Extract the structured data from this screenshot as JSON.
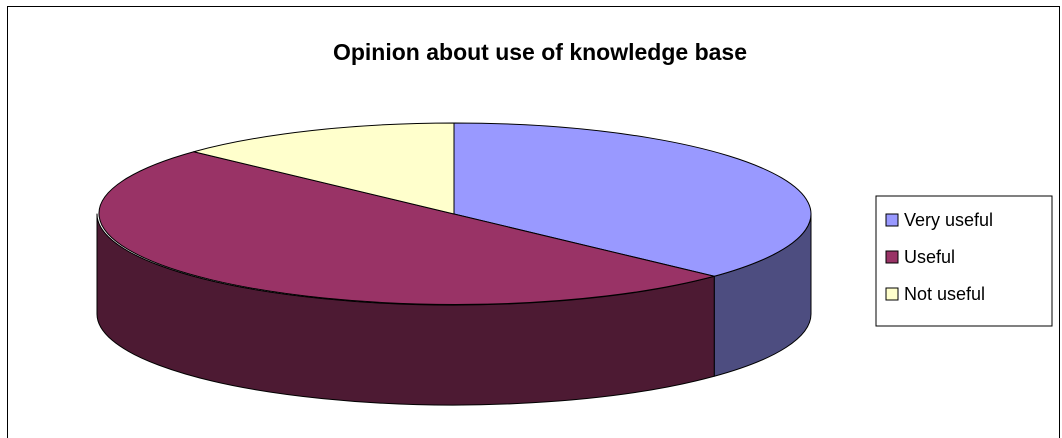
{
  "chart_data": {
    "type": "pie",
    "title": "Opinion about use of knowledge base",
    "categories": [
      "Very useful",
      "Useful",
      "Not useful"
    ],
    "values": [
      37,
      50,
      13
    ],
    "colors": {
      "top": [
        "#9999FF",
        "#993366",
        "#FFFFCC"
      ],
      "side": [
        "#4D4D80",
        "#4D1A33",
        "#808066"
      ]
    },
    "style": "3d-pie",
    "legend": "right"
  }
}
